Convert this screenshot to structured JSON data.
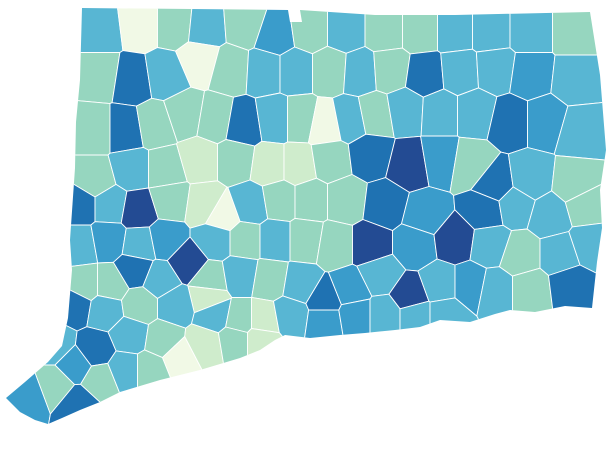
{
  "map": {
    "region": "Connecticut",
    "type": "choropleth",
    "legend": null,
    "palette": {
      "class_0": "#f1f9e6",
      "class_1": "#cfeccc",
      "class_2": "#96d6bf",
      "class_3": "#58b6d3",
      "class_4": "#3a9ccb",
      "class_5": "#1f72b2",
      "class_6": "#234b93"
    },
    "border_color": "#ffffff",
    "background": "#ffffff"
  }
}
